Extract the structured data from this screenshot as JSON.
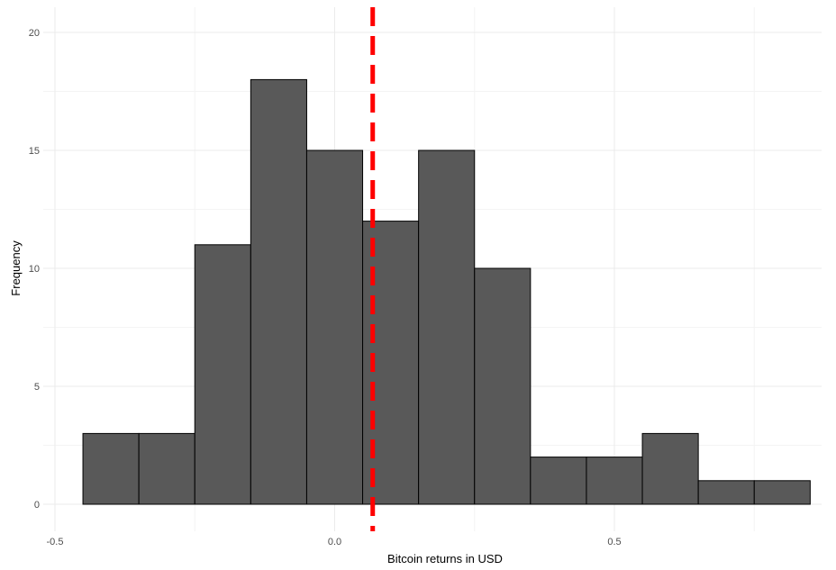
{
  "chart_data": {
    "type": "bar",
    "subtype": "histogram",
    "xlabel": "Bitcoin returns in USD",
    "ylabel": "Frequency",
    "xlim": [
      -0.5,
      0.85
    ],
    "ylim": [
      0,
      20
    ],
    "x_ticks": [
      -0.5,
      0.0,
      0.5
    ],
    "x_tick_labels": [
      "-0.5",
      "0.0",
      "0.5"
    ],
    "y_ticks": [
      0,
      5,
      10,
      15,
      20
    ],
    "y_tick_labels": [
      "0",
      "5",
      "10",
      "15",
      "20"
    ],
    "bin_width": 0.1,
    "bins": [
      {
        "x0": -0.45,
        "x1": -0.35,
        "count": 3
      },
      {
        "x0": -0.35,
        "x1": -0.25,
        "count": 3
      },
      {
        "x0": -0.25,
        "x1": -0.15,
        "count": 11
      },
      {
        "x0": -0.15,
        "x1": -0.05,
        "count": 18
      },
      {
        "x0": -0.05,
        "x1": 0.05,
        "count": 15
      },
      {
        "x0": 0.05,
        "x1": 0.15,
        "count": 12
      },
      {
        "x0": 0.15,
        "x1": 0.25,
        "count": 15
      },
      {
        "x0": 0.25,
        "x1": 0.35,
        "count": 10
      },
      {
        "x0": 0.35,
        "x1": 0.45,
        "count": 2
      },
      {
        "x0": 0.45,
        "x1": 0.55,
        "count": 2
      },
      {
        "x0": 0.55,
        "x1": 0.65,
        "count": 3
      },
      {
        "x0": 0.65,
        "x1": 0.75,
        "count": 1
      },
      {
        "x0": 0.75,
        "x1": 0.85,
        "count": 1
      }
    ],
    "reference_line": {
      "x": 0.068,
      "style": "dashed",
      "color": "#ff0000"
    },
    "bar_fill": "#595959",
    "bar_stroke": "#000000",
    "grid": true,
    "legend": "none"
  }
}
